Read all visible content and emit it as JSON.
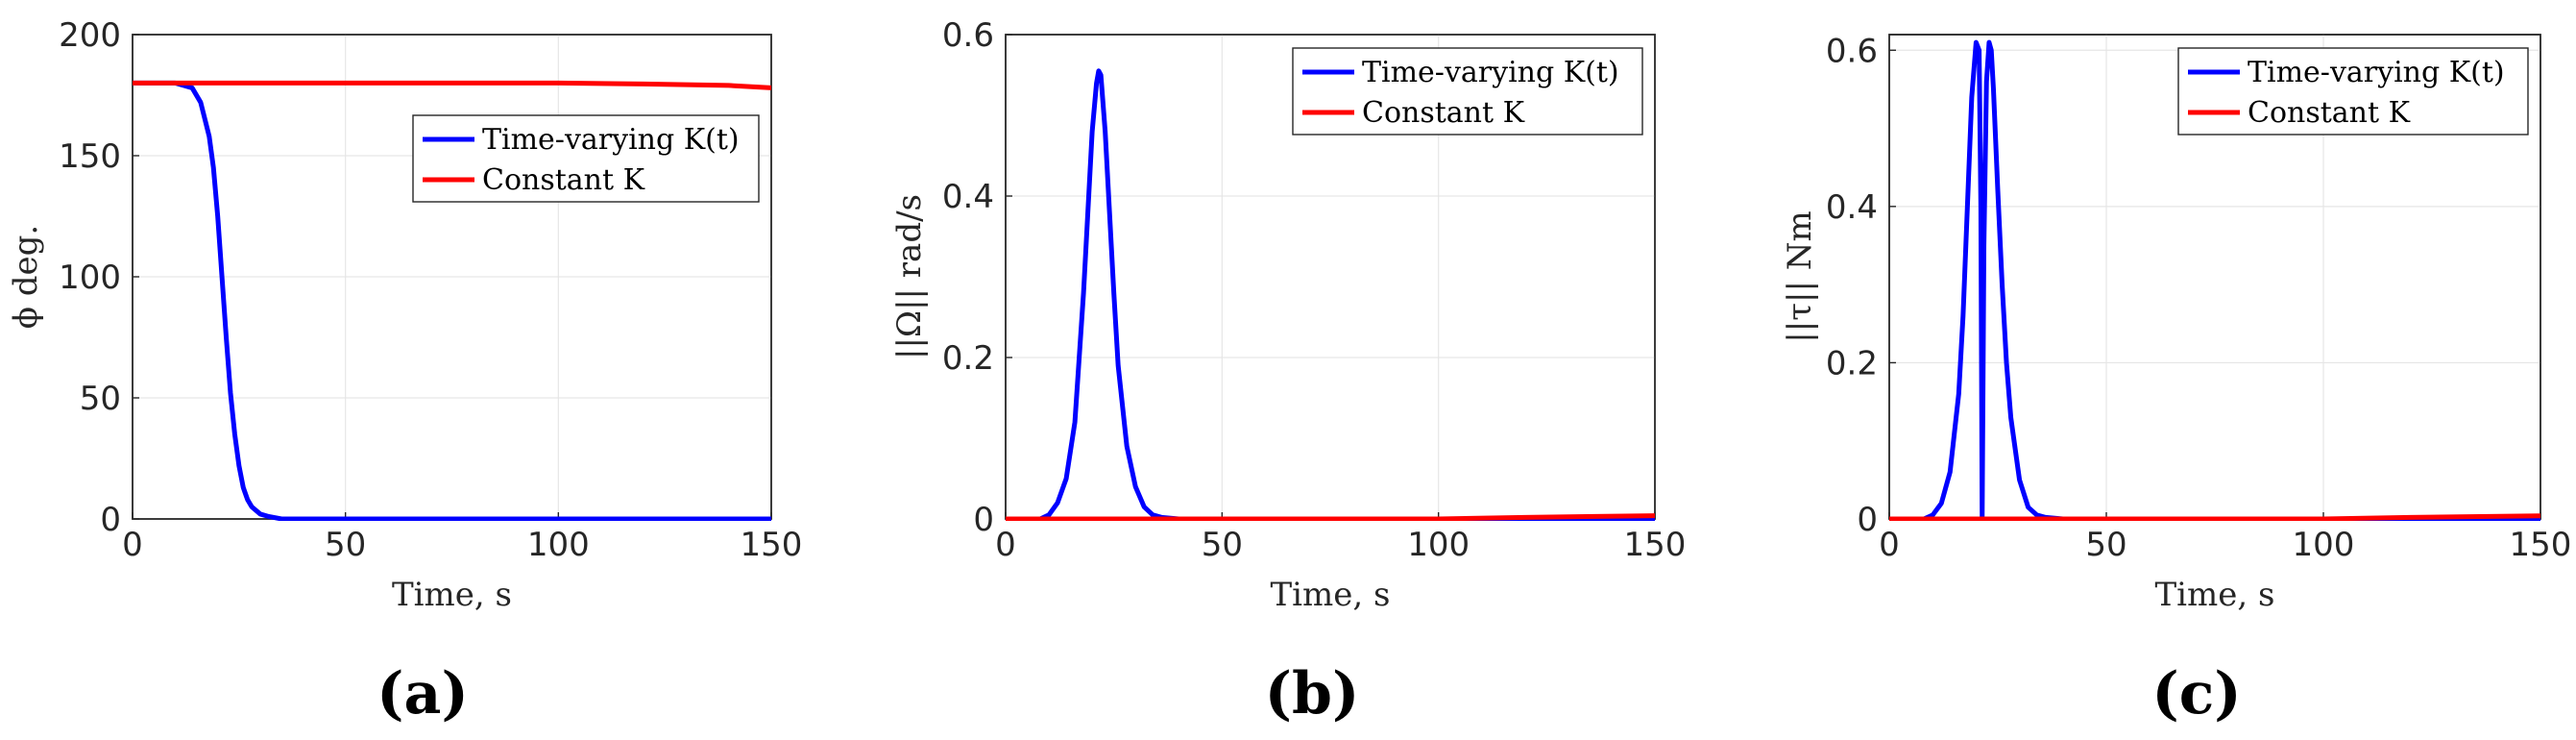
{
  "chart_data": [
    {
      "type": "line",
      "panel_label": "(a)",
      "title": "",
      "xlabel": "Time, s",
      "ylabel": "ϕ deg.",
      "xlim": [
        0,
        150
      ],
      "ylim": [
        0,
        200
      ],
      "xticks": [
        0,
        50,
        100,
        150
      ],
      "xtick_labels": [
        "0",
        "50",
        "100",
        "150"
      ],
      "yticks": [
        0,
        50,
        100,
        150,
        200
      ],
      "ytick_labels": [
        "0",
        "50",
        "100",
        "150",
        "200"
      ],
      "grid": true,
      "legend_position": "center-right",
      "series": [
        {
          "name": "Time-varying K(t)",
          "color": "#0000ff",
          "x": [
            0,
            10,
            14,
            16,
            18,
            19,
            20,
            21,
            22,
            23,
            24,
            25,
            26,
            27,
            28,
            30,
            32,
            35,
            40,
            150
          ],
          "y": [
            180,
            180,
            178,
            172,
            158,
            145,
            125,
            100,
            75,
            52,
            35,
            22,
            13,
            8,
            5,
            2,
            1,
            0,
            0,
            0
          ]
        },
        {
          "name": "Constant K",
          "color": "#ff0000",
          "x": [
            0,
            100,
            120,
            140,
            150
          ],
          "y": [
            180,
            180,
            179.6,
            179,
            178
          ]
        }
      ]
    },
    {
      "type": "line",
      "panel_label": "(b)",
      "title": "",
      "xlabel": "Time, s",
      "ylabel": "||Ω|| rad/s",
      "xlim": [
        0,
        150
      ],
      "ylim": [
        0,
        0.6
      ],
      "xticks": [
        0,
        50,
        100,
        150
      ],
      "xtick_labels": [
        "0",
        "50",
        "100",
        "150"
      ],
      "yticks": [
        0,
        0.2,
        0.4,
        0.6
      ],
      "ytick_labels": [
        "0",
        "0.2",
        "0.4",
        "0.6"
      ],
      "grid": true,
      "legend_position": "top-right",
      "series": [
        {
          "name": "Time-varying K(t)",
          "color": "#0000ff",
          "x": [
            0,
            8,
            10,
            12,
            14,
            16,
            18,
            19,
            20,
            21,
            21.5,
            22,
            23,
            24,
            25,
            26,
            28,
            30,
            32,
            34,
            36,
            40,
            150
          ],
          "y": [
            0,
            0,
            0.005,
            0.02,
            0.05,
            0.12,
            0.28,
            0.38,
            0.48,
            0.54,
            0.555,
            0.55,
            0.48,
            0.38,
            0.28,
            0.19,
            0.09,
            0.04,
            0.015,
            0.005,
            0.002,
            0,
            0
          ]
        },
        {
          "name": "Constant K",
          "color": "#ff0000",
          "x": [
            0,
            100,
            120,
            150
          ],
          "y": [
            0,
            0,
            0.002,
            0.004
          ]
        }
      ]
    },
    {
      "type": "line",
      "panel_label": "(c)",
      "title": "",
      "xlabel": "Time, s",
      "ylabel": "||τ|| Nm",
      "xlim": [
        0,
        150
      ],
      "ylim": [
        0,
        0.62
      ],
      "xticks": [
        0,
        50,
        100,
        150
      ],
      "xtick_labels": [
        "0",
        "50",
        "100",
        "150"
      ],
      "yticks": [
        0,
        0.2,
        0.4,
        0.6
      ],
      "ytick_labels": [
        "0",
        "0.2",
        "0.4",
        "0.6"
      ],
      "grid": true,
      "legend_position": "top-right",
      "series": [
        {
          "name": "Time-varying K(t)",
          "color": "#0000ff",
          "x": [
            0,
            8,
            10,
            12,
            14,
            16,
            17,
            18,
            19,
            20,
            20.7,
            21.1,
            21.4,
            21.8,
            22.4,
            23,
            23.5,
            24,
            25,
            26,
            27,
            28,
            30,
            32,
            34,
            36,
            40,
            150
          ],
          "y": [
            0,
            0,
            0.005,
            0.02,
            0.06,
            0.16,
            0.26,
            0.4,
            0.54,
            0.61,
            0.6,
            0.4,
            0,
            0.35,
            0.56,
            0.61,
            0.6,
            0.55,
            0.42,
            0.3,
            0.2,
            0.13,
            0.05,
            0.015,
            0.005,
            0.002,
            0,
            0
          ]
        },
        {
          "name": "Constant K",
          "color": "#ff0000",
          "x": [
            0,
            100,
            120,
            150
          ],
          "y": [
            0,
            0,
            0.002,
            0.004
          ]
        }
      ]
    }
  ]
}
